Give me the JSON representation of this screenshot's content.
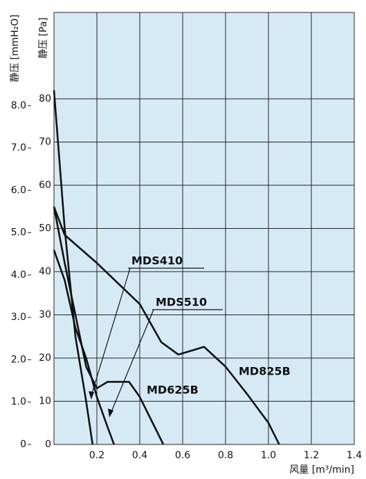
{
  "chart_data": {
    "type": "line",
    "y2label": "静压 [mmH₂O]",
    "ylabel": "静压 [Pa]",
    "xlabel": "风量 [m³/min]",
    "xlim": [
      0,
      1.4
    ],
    "xticks": [
      0.2,
      0.4,
      0.6,
      0.8,
      {
        "value": 1,
        "label": "1.0"
      },
      1.2,
      1.4
    ],
    "ylim": [
      0,
      100
    ],
    "yticks": [
      0,
      10,
      20,
      30,
      40,
      50,
      60,
      70,
      80
    ],
    "y2lim": [
      0,
      10.2
    ],
    "y2ticks": [
      0,
      {
        "value": 1,
        "label": "1.0"
      },
      {
        "value": 2,
        "label": "2.0"
      },
      {
        "value": 3,
        "label": "3.0"
      },
      {
        "value": 4,
        "label": "4.0"
      },
      {
        "value": 5,
        "label": "5.0"
      },
      {
        "value": 6,
        "label": "6.0"
      },
      {
        "value": 7,
        "label": "7.0"
      },
      {
        "value": 8,
        "label": "8.0"
      }
    ],
    "grid": true,
    "series": [
      {
        "name": "MD825B",
        "color": "#111111",
        "x": [
          0,
          0.05,
          0.2,
          0.4,
          0.5,
          0.58,
          0.7,
          0.8,
          0.9,
          1.0,
          1.05
        ],
        "values": [
          55,
          48.5,
          42,
          32.5,
          23.7,
          20.8,
          22.6,
          18,
          11.7,
          5,
          0
        ]
      },
      {
        "name": "MD625B",
        "color": "#111111",
        "x": [
          0,
          0.05,
          0.1,
          0.15,
          0.2,
          0.25,
          0.35,
          0.4,
          0.45,
          0.51
        ],
        "values": [
          55,
          42,
          30,
          18,
          13,
          14.5,
          14.5,
          11,
          6,
          0
        ]
      },
      {
        "name": "MDS410",
        "color": "#111111",
        "x": [
          0,
          0.05,
          0.1,
          0.15,
          0.18
        ],
        "values": [
          82,
          50,
          25,
          10,
          0
        ]
      },
      {
        "name": "MDS510",
        "color": "#111111",
        "x": [
          0,
          0.05,
          0.1,
          0.15,
          0.2,
          0.25,
          0.28
        ],
        "values": [
          45,
          38,
          27,
          20,
          11,
          4,
          0
        ]
      }
    ]
  }
}
